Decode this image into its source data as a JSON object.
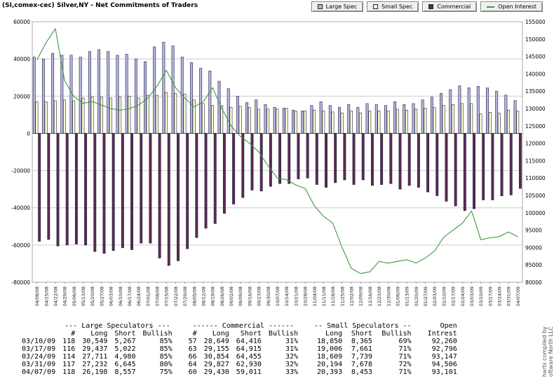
{
  "header": {
    "title": "(SI,comex-cec) Silver,NY - Net Commitments of Traders"
  },
  "legend": {
    "items": [
      {
        "label": "Large Spec",
        "color": "#b4b4e0",
        "type": "box"
      },
      {
        "label": "Small Spec",
        "color": "#ffffd0",
        "type": "box"
      },
      {
        "label": "Commercial",
        "color": "#5c2b50",
        "type": "box"
      },
      {
        "label": "Open Interest",
        "color": "#3d9940",
        "type": "line"
      }
    ]
  },
  "chart_data": {
    "type": "bar",
    "title": "(SI,comex-cec) Silver,NY - Net Commitments of Traders",
    "grid": true,
    "legend_position": "top-right",
    "grid_color": "#cccccc",
    "zero_line_color": "#555555",
    "plot_border_color": "#aaaaaa",
    "bar_outline_color": "#202040",
    "left_axis": {
      "min": -80000,
      "max": 60000,
      "tick_step": 20000
    },
    "right_axis": {
      "min": 80000,
      "max": 155000,
      "tick_step": 5000
    },
    "categories": [
      "04/08/08",
      "04/15/08",
      "04/22/08",
      "04/29/08",
      "05/06/08",
      "05/13/08",
      "05/20/08",
      "05/27/08",
      "06/03/08",
      "06/10/08",
      "06/17/08",
      "06/24/08",
      "07/01/08",
      "07/08/08",
      "07/15/08",
      "07/22/08",
      "07/29/08",
      "08/05/08",
      "08/12/08",
      "08/19/08",
      "08/26/08",
      "09/02/08",
      "09/09/08",
      "09/16/08",
      "09/23/08",
      "09/30/08",
      "10/07/08",
      "10/14/08",
      "10/21/08",
      "10/28/08",
      "11/04/08",
      "11/11/08",
      "11/18/08",
      "11/25/08",
      "12/02/08",
      "12/09/08",
      "12/16/08",
      "12/23/08",
      "12/30/08",
      "01/06/09",
      "01/13/09",
      "01/20/09",
      "01/27/09",
      "02/03/09",
      "02/10/09",
      "02/17/09",
      "02/24/09",
      "03/03/09",
      "03/10/09",
      "03/17/09",
      "03/24/09",
      "03/31/09",
      "04/07/09"
    ],
    "series": [
      {
        "name": "Large Spec",
        "type": "bar",
        "axis": "left",
        "color": "#b4b4e0",
        "values": [
          41000,
          40000,
          43000,
          42000,
          42000,
          41000,
          44000,
          45000,
          44000,
          42000,
          42500,
          40000,
          38500,
          46500,
          49000,
          47000,
          41000,
          38000,
          35000,
          33500,
          28000,
          24000,
          20000,
          16500,
          18000,
          15500,
          14000,
          13500,
          12500,
          12000,
          15000,
          17000,
          15000,
          14000,
          15500,
          14000,
          16000,
          15500,
          15000,
          17000,
          15500,
          16000,
          18000,
          19500,
          21500,
          23500,
          25500,
          24500,
          25282,
          24415,
          22731,
          20587,
          17641
        ]
      },
      {
        "name": "Small Spec",
        "type": "bar",
        "axis": "left",
        "color": "#ffffd0",
        "values": [
          17000,
          17000,
          17500,
          18000,
          17500,
          19000,
          19500,
          19500,
          19000,
          19500,
          20000,
          19000,
          20500,
          20500,
          22000,
          21500,
          21000,
          18000,
          16000,
          15000,
          15000,
          14000,
          14500,
          14000,
          13000,
          13000,
          13000,
          13500,
          12000,
          12000,
          12500,
          12000,
          11500,
          11000,
          12000,
          11000,
          12000,
          12000,
          12000,
          13000,
          12500,
          13000,
          13500,
          14000,
          15000,
          15500,
          16000,
          16000,
          10485,
          11345,
          10870,
          12516,
          11940
        ]
      },
      {
        "name": "Commercial",
        "type": "bar",
        "axis": "left",
        "color": "#5c2b50",
        "values": [
          -58000,
          -57000,
          -60500,
          -60000,
          -59500,
          -60000,
          -63500,
          -64500,
          -63000,
          -61500,
          -62500,
          -59000,
          -59000,
          -67000,
          -71000,
          -68500,
          -62000,
          -56000,
          -51000,
          -48500,
          -43000,
          -38000,
          -34500,
          -30500,
          -31000,
          -28500,
          -27000,
          -27000,
          -24500,
          -24000,
          -27500,
          -29000,
          -26500,
          -25000,
          -27500,
          -25000,
          -28000,
          -27500,
          -27000,
          -30000,
          -28000,
          -29000,
          -31500,
          -33500,
          -36500,
          -39000,
          -41500,
          -40500,
          -35767,
          -35760,
          -33601,
          -33103,
          -29581
        ]
      },
      {
        "name": "Open Interest",
        "type": "line",
        "axis": "right",
        "color": "#3d9940",
        "values": [
          144000,
          149000,
          153000,
          138000,
          133500,
          131500,
          132000,
          131000,
          130000,
          129500,
          130000,
          131000,
          133000,
          136500,
          141000,
          136000,
          133000,
          130500,
          132000,
          136000,
          130000,
          125000,
          122000,
          120000,
          117500,
          113500,
          110000,
          109500,
          108000,
          107000,
          102000,
          99000,
          97000,
          90000,
          84000,
          82500,
          83000,
          86000,
          85500,
          86000,
          86500,
          85500,
          87000,
          89000,
          93000,
          95000,
          97000,
          100500,
          92260,
          92796,
          93147,
          94506,
          93101
        ]
      }
    ]
  },
  "table": {
    "group_headers": [
      {
        "label": "",
        "colspan": 1
      },
      {
        "label": "--- Large Speculators ---",
        "colspan": 4
      },
      {
        "label": "------ Commercial ------",
        "colspan": 4
      },
      {
        "label": "-- Small Speculators --",
        "colspan": 3
      },
      {
        "label": "Open",
        "colspan": 1
      }
    ],
    "column_headers": [
      "",
      "#",
      "Long",
      "Short",
      "Bullish",
      "#",
      "Long",
      "Short",
      "Bullish",
      "Long",
      "Short",
      "Bullish",
      "Intrest"
    ],
    "rows": [
      [
        "03/10/09",
        "118",
        "30,549",
        "5,267",
        "85%",
        "57",
        "28,649",
        "64,416",
        "31%",
        "18,850",
        "8,365",
        "69%",
        "92,260"
      ],
      [
        "03/17/09",
        "116",
        "29,437",
        "5,022",
        "85%",
        "63",
        "29,155",
        "64,915",
        "31%",
        "19,006",
        "7,661",
        "71%",
        "92,796"
      ],
      [
        "03/24/09",
        "114",
        "27,711",
        "4,980",
        "85%",
        "66",
        "30,854",
        "64,455",
        "32%",
        "18,609",
        "7,739",
        "71%",
        "93,147"
      ],
      [
        "03/31/09",
        "117",
        "27,232",
        "6,645",
        "80%",
        "64",
        "29,827",
        "62,930",
        "32%",
        "20,194",
        "7,678",
        "72%",
        "94,506"
      ],
      [
        "04/07/09",
        "118",
        "26,198",
        "8,557",
        "75%",
        "60",
        "29,430",
        "59,011",
        "33%",
        "20,393",
        "8,453",
        "71%",
        "93,101"
      ]
    ]
  },
  "watermark": {
    "line1": "harts compiled by",
    "line2": "oftware North LLC"
  }
}
